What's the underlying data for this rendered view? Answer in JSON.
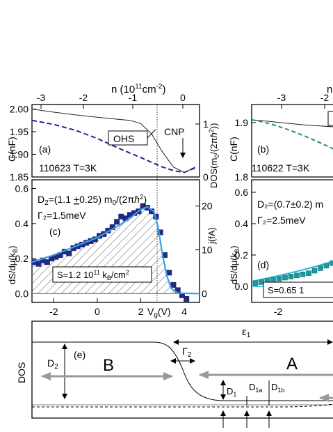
{
  "chart_data": [
    {
      "id": "a",
      "type": "line",
      "panel_label": "(a)",
      "sample_label": "110623 T=3K",
      "xlabel_top": "n (10",
      "xlabel_top_exp": "11",
      "xlabel_top_unit": "cm",
      "xlabel_top_unit_exp": "-2",
      "xlabel_top_close": ")",
      "top_ticks": [
        "-3",
        "-2",
        "-1",
        "0"
      ],
      "ylabel": "C(nF)",
      "yticks": [
        "2.00",
        "1.95",
        "1.90",
        "1.85"
      ],
      "ylim": [
        1.85,
        2.01
      ],
      "ylabel_right": "DOS(m0/(2πħ²))",
      "yticks_right": [
        "1",
        "0"
      ],
      "annotations": [
        "OHS",
        "CNP"
      ],
      "series": [
        {
          "values_x": [
            -3.0,
            -2.0,
            -1.0,
            0.0,
            1.0,
            1.5,
            2.0,
            2.5,
            3.0,
            3.5,
            4.0,
            4.5
          ],
          "values_y": [
            2.0,
            1.993,
            1.987,
            1.982,
            1.977,
            1.975,
            1.968,
            1.945,
            1.905,
            1.872,
            1.86,
            1.872
          ]
        },
        {
          "values_x": [
            -3.0,
            -2.0,
            -1.0,
            0.0,
            1.0,
            2.0,
            3.0,
            3.5,
            4.0,
            4.5
          ],
          "values_y": [
            1.975,
            1.966,
            1.953,
            1.935,
            1.913,
            1.893,
            1.872,
            1.864,
            1.86,
            1.87
          ]
        }
      ]
    },
    {
      "id": "c",
      "type": "scatter",
      "panel_label": "(c)",
      "text_D2": "D₂=(1.1 ±0.25) m₀/(2πħ²)",
      "text_gamma": "Γ₂=1.5meV",
      "text_S": "S=1.2 10¹¹ k_B/cm²",
      "ylabel": "dS/dμ(k_B)",
      "yticks": [
        "0.6",
        "0.4",
        "0.2",
        "0.0"
      ],
      "ylim": [
        -0.05,
        0.65
      ],
      "ylabel_right": "j(fA)",
      "yticks_right": [
        "20",
        "10",
        "0"
      ],
      "xlabel": "V_g(V)",
      "xticks": [
        "-2",
        "0",
        "2",
        "4"
      ],
      "xlim": [
        -3.0,
        4.7
      ],
      "points_x": [
        -2.9,
        -2.7,
        -2.5,
        -2.3,
        -2.1,
        -1.9,
        -1.7,
        -1.5,
        -1.3,
        -1.1,
        -0.9,
        -0.7,
        -0.5,
        -0.3,
        -0.1,
        0.1,
        0.3,
        0.5,
        0.7,
        0.9,
        1.1,
        1.3,
        1.5,
        1.7,
        1.9,
        2.1,
        2.3,
        2.5,
        2.7,
        2.9,
        3.1,
        3.3,
        3.5,
        3.7,
        3.9,
        4.1
      ],
      "points_y": [
        0.18,
        0.17,
        0.19,
        0.18,
        0.2,
        0.21,
        0.22,
        0.24,
        0.23,
        0.26,
        0.27,
        0.28,
        0.29,
        0.3,
        0.31,
        0.33,
        0.34,
        0.36,
        0.38,
        0.41,
        0.44,
        0.43,
        0.45,
        0.46,
        0.47,
        0.5,
        0.49,
        0.47,
        0.44,
        0.35,
        0.22,
        0.12,
        0.05,
        0.02,
        -0.01,
        -0.03
      ],
      "fit_x": [
        -3.0,
        -2.0,
        -1.0,
        0.0,
        1.0,
        1.5,
        2.0,
        2.3,
        2.6,
        2.8,
        3.0,
        3.2,
        3.4,
        3.7,
        4.7
      ],
      "fit_y": [
        0.18,
        0.22,
        0.27,
        0.32,
        0.39,
        0.43,
        0.48,
        0.495,
        0.47,
        0.38,
        0.22,
        0.1,
        0.03,
        0.003,
        0.0
      ]
    },
    {
      "id": "b",
      "type": "line",
      "panel_label": "(b)",
      "sample_label": "110622 T=3K",
      "ylabel": "C(nF)",
      "yticks": [
        "1.9",
        "1.8"
      ],
      "top_ticks": [
        "-3",
        "-2"
      ],
      "xlabel_top": "n"
    },
    {
      "id": "d",
      "type": "scatter",
      "panel_label": "(d)",
      "text_D2": "D₂=(0.7±0.2) m",
      "text_gamma": "Γ₂=2.5meV",
      "text_S": "S=0.65 1",
      "ylabel": "dS/dμ(k_B)",
      "yticks": [
        "0.6",
        "0.4",
        "0.2",
        "0.0"
      ],
      "xticks": [
        "-2"
      ]
    },
    {
      "id": "e",
      "type": "diagram",
      "panel_label": "(e)",
      "ylabel": "DOS",
      "region_B": "B",
      "region_A": "A",
      "eps": "ε₁",
      "gamma": "Γ₂",
      "D2": "D₂",
      "D1": "D₁",
      "D1a": "D₁a",
      "D1b": "D₁b"
    }
  ]
}
